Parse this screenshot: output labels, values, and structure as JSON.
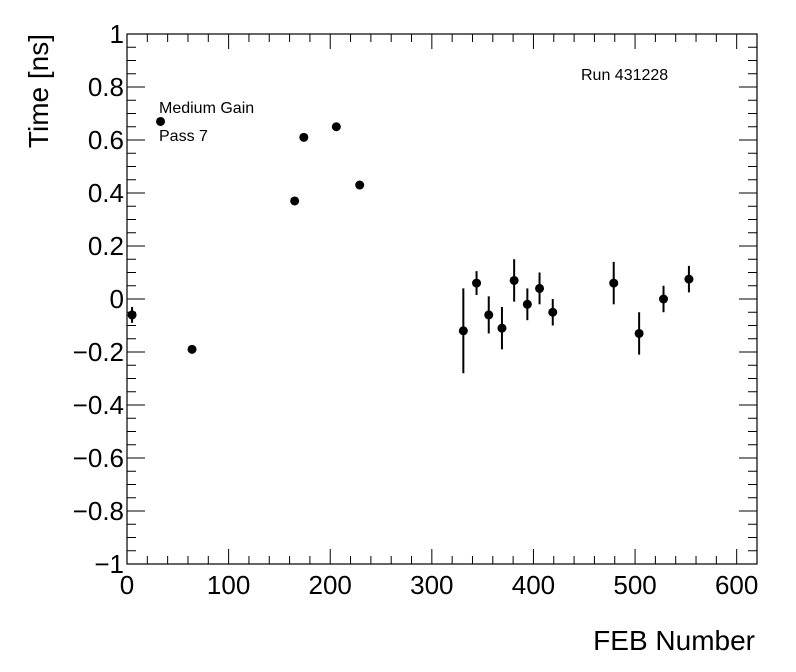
{
  "chart_data": {
    "type": "scatter",
    "title": "",
    "xlabel": "FEB Number",
    "ylabel": "Time [ns]",
    "xlim": [
      0,
      620
    ],
    "ylim": [
      -1,
      1
    ],
    "x_ticks": [
      0,
      100,
      200,
      300,
      400,
      500,
      600
    ],
    "y_ticks": [
      -1,
      -0.8,
      -0.6,
      -0.4,
      -0.2,
      0,
      0.2,
      0.4,
      0.6,
      0.8,
      1
    ],
    "x_tick_labels": [
      "0",
      "100",
      "200",
      "300",
      "400",
      "500",
      "600"
    ],
    "y_tick_labels": [
      "−1",
      "−0.8",
      "−0.6",
      "−0.4",
      "−0.2",
      "0",
      "0.2",
      "0.4",
      "0.6",
      "0.8",
      "1"
    ],
    "annotations": {
      "gain": "Medium Gain",
      "pass": "Pass 7",
      "run": "Run 431228"
    },
    "grid": false,
    "marker_color": "#000000",
    "points": [
      {
        "x": 5,
        "y": -0.06,
        "err": 0.03
      },
      {
        "x": 33,
        "y": 0.67,
        "err": 0.0
      },
      {
        "x": 64,
        "y": -0.19,
        "err": 0.0
      },
      {
        "x": 165,
        "y": 0.37,
        "err": 0.0
      },
      {
        "x": 174,
        "y": 0.61,
        "err": 0.0
      },
      {
        "x": 206,
        "y": 0.65,
        "err": 0.0
      },
      {
        "x": 229,
        "y": 0.43,
        "err": 0.0
      },
      {
        "x": 331,
        "y": -0.12,
        "err": 0.16
      },
      {
        "x": 344,
        "y": 0.06,
        "err": 0.045
      },
      {
        "x": 356,
        "y": -0.06,
        "err": 0.07
      },
      {
        "x": 369,
        "y": -0.11,
        "err": 0.08
      },
      {
        "x": 381,
        "y": 0.07,
        "err": 0.08
      },
      {
        "x": 394,
        "y": -0.02,
        "err": 0.06
      },
      {
        "x": 406,
        "y": 0.04,
        "err": 0.06
      },
      {
        "x": 419,
        "y": -0.05,
        "err": 0.05
      },
      {
        "x": 479,
        "y": 0.06,
        "err": 0.08
      },
      {
        "x": 504,
        "y": -0.13,
        "err": 0.08
      },
      {
        "x": 528,
        "y": 0.0,
        "err": 0.05
      },
      {
        "x": 553,
        "y": 0.075,
        "err": 0.05
      }
    ]
  }
}
